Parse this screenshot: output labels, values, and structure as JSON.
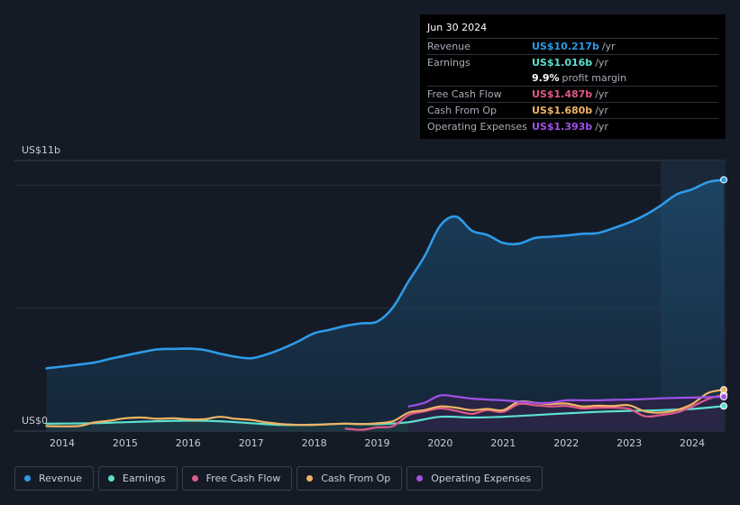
{
  "tooltip": {
    "date": "Jun 30 2024",
    "rows": [
      {
        "label": "Revenue",
        "value": "US$10.217b",
        "unit": "/yr",
        "color": "#2d9be8"
      },
      {
        "label": "Earnings",
        "value": "US$1.016b",
        "unit": "/yr",
        "color": "#5ee0cf"
      },
      {
        "label": "",
        "value": "9.9%",
        "unit": "profit margin",
        "color": "#ffffff"
      },
      {
        "label": "Free Cash Flow",
        "value": "US$1.487b",
        "unit": "/yr",
        "color": "#e05a8a"
      },
      {
        "label": "Cash From Op",
        "value": "US$1.680b",
        "unit": "/yr",
        "color": "#f0b464"
      },
      {
        "label": "Operating Expenses",
        "value": "US$1.393b",
        "unit": "/yr",
        "color": "#a052e8"
      }
    ]
  },
  "legend": [
    {
      "label": "Revenue",
      "color": "#2d9be8"
    },
    {
      "label": "Earnings",
      "color": "#5ee0cf"
    },
    {
      "label": "Free Cash Flow",
      "color": "#e05a8a"
    },
    {
      "label": "Cash From Op",
      "color": "#f0b464"
    },
    {
      "label": "Operating Expenses",
      "color": "#a052e8"
    }
  ],
  "chart_data": {
    "type": "line",
    "title": "",
    "y_top_label": "US$11b",
    "y_bottom_label": "US$0",
    "ylim": [
      0,
      11
    ],
    "xlim": [
      2013.7,
      2024.5
    ],
    "x_ticks": [
      "2014",
      "2015",
      "2016",
      "2017",
      "2018",
      "2019",
      "2020",
      "2021",
      "2022",
      "2023",
      "2024"
    ],
    "x_tick_values": [
      2014,
      2015,
      2016,
      2017,
      2018,
      2019,
      2020,
      2021,
      2022,
      2023,
      2024
    ],
    "highlight_start": 2023.5,
    "series": [
      {
        "name": "Revenue",
        "color": "#2d9be8",
        "area": true,
        "x": [
          2013.75,
          2014.0,
          2014.25,
          2014.5,
          2014.75,
          2015.0,
          2015.25,
          2015.5,
          2015.75,
          2016.0,
          2016.25,
          2016.5,
          2016.75,
          2017.0,
          2017.25,
          2017.5,
          2017.75,
          2018.0,
          2018.25,
          2018.5,
          2018.75,
          2019.0,
          2019.25,
          2019.5,
          2019.75,
          2020.0,
          2020.25,
          2020.5,
          2020.75,
          2021.0,
          2021.25,
          2021.5,
          2021.75,
          2022.0,
          2022.25,
          2022.5,
          2022.75,
          2023.0,
          2023.25,
          2023.5,
          2023.75,
          2024.0,
          2024.25,
          2024.5
        ],
        "values": [
          2.55,
          2.62,
          2.7,
          2.78,
          2.93,
          3.07,
          3.2,
          3.32,
          3.34,
          3.35,
          3.3,
          3.15,
          3.02,
          2.96,
          3.12,
          3.36,
          3.65,
          3.98,
          4.12,
          4.28,
          4.38,
          4.45,
          5.03,
          6.1,
          7.1,
          8.35,
          8.72,
          8.15,
          7.97,
          7.65,
          7.62,
          7.85,
          7.9,
          7.95,
          8.02,
          8.05,
          8.25,
          8.48,
          8.78,
          9.17,
          9.62,
          9.83,
          10.12,
          10.217
        ]
      },
      {
        "name": "Earnings",
        "color": "#5ee0cf",
        "area": true,
        "x": [
          2013.75,
          2014.5,
          2015.0,
          2015.5,
          2016.0,
          2016.5,
          2017.0,
          2017.5,
          2018.0,
          2018.5,
          2019.0,
          2019.5,
          2020.0,
          2020.5,
          2021.0,
          2021.5,
          2022.0,
          2022.5,
          2023.0,
          2023.5,
          2024.0,
          2024.5
        ],
        "values": [
          0.3,
          0.32,
          0.36,
          0.4,
          0.42,
          0.4,
          0.32,
          0.25,
          0.26,
          0.3,
          0.28,
          0.36,
          0.58,
          0.55,
          0.58,
          0.65,
          0.72,
          0.78,
          0.82,
          0.85,
          0.9,
          1.016
        ]
      },
      {
        "name": "Free Cash Flow",
        "color": "#e05a8a",
        "area": false,
        "x": [
          2018.5,
          2018.75,
          2019.0,
          2019.25,
          2019.5,
          2019.75,
          2020.0,
          2020.25,
          2020.5,
          2020.75,
          2021.0,
          2021.25,
          2021.5,
          2021.75,
          2022.0,
          2022.25,
          2022.5,
          2022.75,
          2023.0,
          2023.25,
          2023.5,
          2023.75,
          2024.0,
          2024.25,
          2024.5
        ],
        "values": [
          0.1,
          0.05,
          0.15,
          0.2,
          0.65,
          0.8,
          0.92,
          0.82,
          0.7,
          0.85,
          0.78,
          1.1,
          1.05,
          1.0,
          1.02,
          0.92,
          0.95,
          0.95,
          0.9,
          0.6,
          0.65,
          0.75,
          1.0,
          1.3,
          1.487
        ]
      },
      {
        "name": "Cash From Op",
        "color": "#f0b464",
        "area": false,
        "x": [
          2013.75,
          2014.25,
          2014.5,
          2014.75,
          2015.0,
          2015.25,
          2015.5,
          2015.75,
          2016.0,
          2016.25,
          2016.5,
          2016.75,
          2017.0,
          2017.25,
          2017.5,
          2017.75,
          2018.0,
          2018.25,
          2018.5,
          2018.75,
          2019.0,
          2019.25,
          2019.5,
          2019.75,
          2020.0,
          2020.25,
          2020.5,
          2020.75,
          2021.0,
          2021.25,
          2021.5,
          2021.75,
          2022.0,
          2022.25,
          2022.5,
          2022.75,
          2023.0,
          2023.25,
          2023.5,
          2023.75,
          2024.0,
          2024.25,
          2024.5
        ],
        "values": [
          0.2,
          0.2,
          0.35,
          0.42,
          0.52,
          0.55,
          0.5,
          0.52,
          0.48,
          0.48,
          0.58,
          0.5,
          0.45,
          0.35,
          0.28,
          0.25,
          0.25,
          0.28,
          0.3,
          0.28,
          0.32,
          0.4,
          0.75,
          0.85,
          1.0,
          0.95,
          0.85,
          0.9,
          0.85,
          1.2,
          1.15,
          1.1,
          1.12,
          1.0,
          1.03,
          1.02,
          1.05,
          0.8,
          0.75,
          0.85,
          1.1,
          1.55,
          1.68
        ]
      },
      {
        "name": "Operating Expenses",
        "color": "#a052e8",
        "area": true,
        "x": [
          2019.5,
          2019.75,
          2020.0,
          2020.25,
          2020.5,
          2020.75,
          2021.0,
          2021.25,
          2021.5,
          2021.75,
          2022.0,
          2022.25,
          2022.5,
          2022.75,
          2023.0,
          2023.25,
          2023.5,
          2023.75,
          2024.0,
          2024.25,
          2024.5
        ],
        "values": [
          1.0,
          1.15,
          1.45,
          1.4,
          1.32,
          1.28,
          1.25,
          1.2,
          1.15,
          1.15,
          1.25,
          1.25,
          1.25,
          1.27,
          1.28,
          1.3,
          1.33,
          1.35,
          1.36,
          1.38,
          1.393
        ]
      }
    ]
  }
}
